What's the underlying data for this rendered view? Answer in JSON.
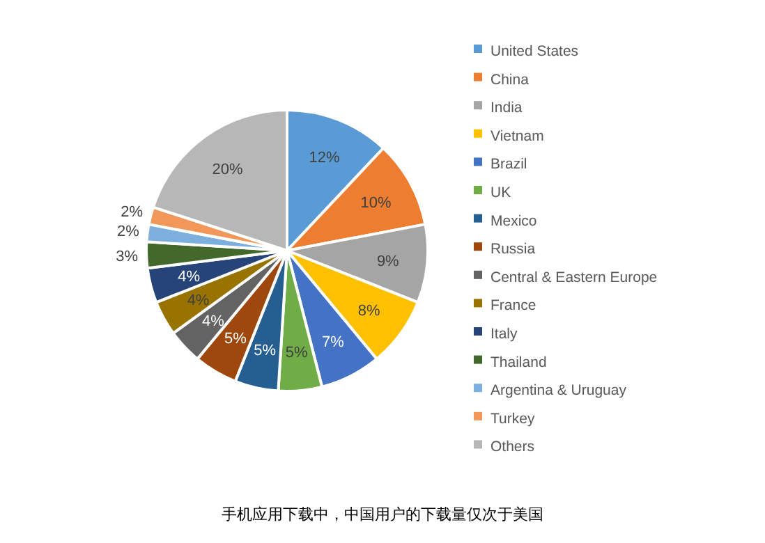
{
  "chart_data": {
    "type": "pie",
    "categories": [
      "United States",
      "China",
      "India",
      "Vietnam",
      "Brazil",
      "UK",
      "Mexico",
      "Russia",
      "Central & Eastern Europe",
      "France",
      "Italy",
      "Thailand",
      "Argentina & Uruguay",
      "Turkey",
      "Others"
    ],
    "values": [
      12,
      10,
      9,
      8,
      7,
      5,
      5,
      5,
      4,
      4,
      4,
      3,
      2,
      2,
      20
    ],
    "value_labels": [
      "12%",
      "10%",
      "9%",
      "8%",
      "7%",
      "5%",
      "5%",
      "5%",
      "4%",
      "4%",
      "4%",
      "3%",
      "2%",
      "2%",
      "20%"
    ],
    "colors": [
      "#5b9bd5",
      "#ed7d31",
      "#a5a5a5",
      "#ffc000",
      "#4472c4",
      "#70ad47",
      "#255e91",
      "#9e480e",
      "#636363",
      "#997300",
      "#264478",
      "#43682b",
      "#7cafdd",
      "#f1975a",
      "#b7b7b7"
    ],
    "legend": "right",
    "annotations": [
      "手机应用下载中，中国用户的下载量仅次于美国"
    ]
  }
}
